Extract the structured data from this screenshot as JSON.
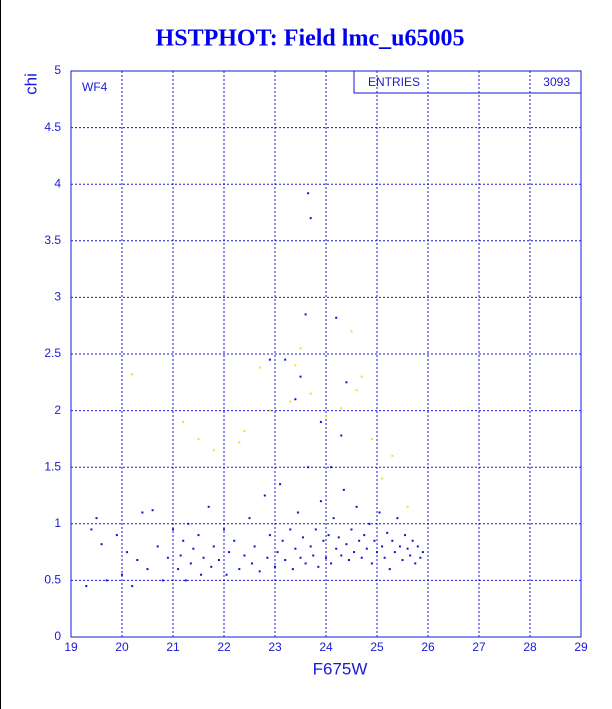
{
  "chart_data": {
    "type": "scatter",
    "title": "HSTPHOT: Field lmc_u65005",
    "x_label": "F675W",
    "y_label": "chi",
    "annotation": "WF4",
    "stats": {
      "label": "ENTRIES",
      "value": 3093
    },
    "xlim": [
      19,
      29
    ],
    "ylim": [
      0,
      5
    ],
    "xticks": [
      19,
      20,
      21,
      22,
      23,
      24,
      25,
      26,
      27,
      28,
      29
    ],
    "yticks": [
      0,
      0.5,
      1,
      1.5,
      2,
      2.5,
      3,
      3.5,
      4,
      4.5,
      5
    ],
    "grid": true,
    "series": [
      {
        "color": "#1010d0",
        "x": [
          19.3,
          19.4,
          19.5,
          19.6,
          19.7,
          19.9,
          20.0,
          20.1,
          20.2,
          20.3,
          20.4,
          20.5,
          20.6,
          20.7,
          20.8,
          20.9,
          21.0,
          21.1,
          21.15,
          21.2,
          21.25,
          21.3,
          21.35,
          21.4,
          21.5,
          21.55,
          21.6,
          21.7,
          21.75,
          21.8,
          21.9,
          22.0,
          22.05,
          22.1,
          22.2,
          22.3,
          22.4,
          22.5,
          22.55,
          22.6,
          22.7,
          22.8,
          22.85,
          22.9,
          23.0,
          23.05,
          23.1,
          23.15,
          23.2,
          23.3,
          23.35,
          23.4,
          23.45,
          23.5,
          23.55,
          23.6,
          23.65,
          23.7,
          23.75,
          23.8,
          23.85,
          23.9,
          23.95,
          24.0,
          24.05,
          24.1,
          24.15,
          24.2,
          24.25,
          24.3,
          24.35,
          24.4,
          24.45,
          24.5,
          24.55,
          24.6,
          24.65,
          24.7,
          24.75,
          24.8,
          24.85,
          24.9,
          24.95,
          25.0,
          25.05,
          25.1,
          25.15,
          25.2,
          25.25,
          25.3,
          25.35,
          25.4,
          25.45,
          25.5,
          25.55,
          25.6,
          25.65,
          25.7,
          25.75,
          25.8,
          25.85,
          25.9,
          23.7,
          23.65,
          23.6,
          24.2,
          23.4,
          23.5,
          24.4,
          24.3,
          23.9,
          24.1,
          22.9,
          23.2
        ],
        "values": [
          0.45,
          0.95,
          1.05,
          0.82,
          0.5,
          0.9,
          0.55,
          0.75,
          0.45,
          0.68,
          1.1,
          0.6,
          1.12,
          0.8,
          0.5,
          0.7,
          0.95,
          0.6,
          0.72,
          0.85,
          0.5,
          1.0,
          0.65,
          0.78,
          0.9,
          0.55,
          0.7,
          1.15,
          0.62,
          0.8,
          0.68,
          0.95,
          0.55,
          0.75,
          0.85,
          0.6,
          0.72,
          1.05,
          0.65,
          0.8,
          0.58,
          1.25,
          0.7,
          0.9,
          0.62,
          0.75,
          1.35,
          0.85,
          0.68,
          0.95,
          0.6,
          0.78,
          1.1,
          0.7,
          0.88,
          0.65,
          1.5,
          0.8,
          0.72,
          0.95,
          0.62,
          1.2,
          0.85,
          0.7,
          0.9,
          0.65,
          1.05,
          0.78,
          0.88,
          0.72,
          1.3,
          0.82,
          0.68,
          0.95,
          0.75,
          1.15,
          0.85,
          0.7,
          0.9,
          0.78,
          1.0,
          0.65,
          0.85,
          0.75,
          1.1,
          0.8,
          0.7,
          0.92,
          0.6,
          0.85,
          0.75,
          1.05,
          0.8,
          0.68,
          0.9,
          0.78,
          0.72,
          0.85,
          0.65,
          0.8,
          0.7,
          0.75,
          3.7,
          3.92,
          2.85,
          2.82,
          2.1,
          2.3,
          2.25,
          1.78,
          1.9,
          1.5,
          2.45,
          2.45
        ]
      },
      {
        "color": "#f0e020",
        "x": [
          20.2,
          21.2,
          21.5,
          21.8,
          22.3,
          22.4,
          22.7,
          22.9,
          23.3,
          23.4,
          23.5,
          23.7,
          24.0,
          24.3,
          24.5,
          24.6,
          24.7,
          24.9,
          25.1,
          25.3,
          25.6
        ],
        "values": [
          2.32,
          1.9,
          1.75,
          1.65,
          1.72,
          1.82,
          2.38,
          2.0,
          2.08,
          2.4,
          2.55,
          2.15,
          1.95,
          2.02,
          2.7,
          2.18,
          2.3,
          1.75,
          1.4,
          1.6,
          1.15
        ]
      }
    ]
  }
}
